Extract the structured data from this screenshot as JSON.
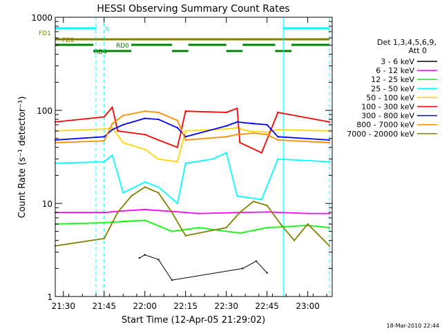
{
  "chart_data": {
    "type": "line",
    "title": "HESSI Observing Summary Count Rates",
    "xlabel": "Start Time (12-Apr-05 21:29:02)",
    "ylabel": "Count Rate (s⁻¹ detector⁻¹)",
    "y_scale": "log",
    "ylim": [
      1,
      1000
    ],
    "xlim": [
      "21:27",
      "23:09"
    ],
    "x_ticks": [
      "21:30",
      "21:45",
      "22:00",
      "22:15",
      "22:30",
      "22:45",
      "23:00"
    ],
    "y_ticks": [
      "1",
      "10",
      "100",
      "1000"
    ],
    "legend_header": [
      "Det 1,3,4,5,6,9,",
      "Att 0"
    ],
    "legend_position": "right",
    "series": [
      {
        "name": "3 - 6 keV",
        "color": "#000000",
        "points": [
          [
            "21:58",
            2.6
          ],
          [
            "22:00",
            2.8
          ],
          [
            "22:05",
            2.5
          ],
          [
            "22:10",
            1.5
          ],
          [
            "22:36",
            2.0
          ],
          [
            "22:41",
            2.4
          ],
          [
            "22:45",
            1.8
          ]
        ]
      },
      {
        "name": "6 - 12 keV",
        "color": "#ff00ff",
        "points": [
          [
            "21:27",
            8.0
          ],
          [
            "21:45",
            8.0
          ],
          [
            "21:52",
            8.3
          ],
          [
            "22:00",
            8.6
          ],
          [
            "22:10",
            8.2
          ],
          [
            "22:20",
            7.8
          ],
          [
            "22:35",
            8.0
          ],
          [
            "22:45",
            8.1
          ],
          [
            "23:00",
            7.8
          ],
          [
            "23:08",
            7.8
          ]
        ]
      },
      {
        "name": "12 - 25 keV",
        "color": "#00ff00",
        "points": [
          [
            "21:27",
            6.0
          ],
          [
            "21:45",
            6.2
          ],
          [
            "21:52",
            6.4
          ],
          [
            "22:00",
            6.6
          ],
          [
            "22:10",
            5.0
          ],
          [
            "22:20",
            5.5
          ],
          [
            "22:35",
            4.8
          ],
          [
            "22:45",
            5.5
          ],
          [
            "23:00",
            5.8
          ],
          [
            "23:08",
            5.5
          ]
        ]
      },
      {
        "name": "25 - 50 keV",
        "color": "#00ffff",
        "points": [
          [
            "21:27",
            27
          ],
          [
            "21:45",
            28
          ],
          [
            "21:48",
            33
          ],
          [
            "21:52",
            13
          ],
          [
            "22:00",
            17
          ],
          [
            "22:05",
            15
          ],
          [
            "22:12",
            10
          ],
          [
            "22:15",
            27
          ],
          [
            "22:25",
            30
          ],
          [
            "22:30",
            35
          ],
          [
            "22:34",
            12
          ],
          [
            "22:43",
            11
          ],
          [
            "22:49",
            30
          ],
          [
            "23:08",
            28
          ]
        ]
      },
      {
        "name": "50 - 100 keV",
        "color": "#ffd700",
        "points": [
          [
            "21:27",
            60
          ],
          [
            "21:45",
            63
          ],
          [
            "21:48",
            65
          ],
          [
            "21:52",
            45
          ],
          [
            "22:00",
            38
          ],
          [
            "22:05",
            30
          ],
          [
            "22:12",
            28
          ],
          [
            "22:15",
            60
          ],
          [
            "22:30",
            63
          ],
          [
            "22:34",
            65
          ],
          [
            "22:38",
            60
          ],
          [
            "22:45",
            58
          ],
          [
            "22:49",
            62
          ],
          [
            "23:08",
            60
          ]
        ]
      },
      {
        "name": "100 - 300 keV",
        "color": "#ff0000",
        "points": [
          [
            "21:27",
            75
          ],
          [
            "21:45",
            85
          ],
          [
            "21:48",
            108
          ],
          [
            "21:50",
            60
          ],
          [
            "22:00",
            55
          ],
          [
            "22:05",
            48
          ],
          [
            "22:12",
            40
          ],
          [
            "22:15",
            98
          ],
          [
            "22:30",
            95
          ],
          [
            "22:34",
            105
          ],
          [
            "22:35",
            45
          ],
          [
            "22:43",
            35
          ],
          [
            "22:49",
            95
          ],
          [
            "23:08",
            75
          ]
        ]
      },
      {
        "name": "300 - 800 keV",
        "color": "#0000ff",
        "points": [
          [
            "21:27",
            48
          ],
          [
            "21:45",
            52
          ],
          [
            "21:48",
            62
          ],
          [
            "21:52",
            70
          ],
          [
            "22:00",
            82
          ],
          [
            "22:05",
            80
          ],
          [
            "22:12",
            65
          ],
          [
            "22:15",
            52
          ],
          [
            "22:30",
            68
          ],
          [
            "22:34",
            75
          ],
          [
            "22:40",
            72
          ],
          [
            "22:45",
            70
          ],
          [
            "22:49",
            52
          ],
          [
            "23:08",
            48
          ]
        ]
      },
      {
        "name": "800 - 7000 keV",
        "color": "#ff8c00",
        "points": [
          [
            "21:27",
            45
          ],
          [
            "21:45",
            47
          ],
          [
            "21:48",
            72
          ],
          [
            "21:52",
            88
          ],
          [
            "22:00",
            98
          ],
          [
            "22:05",
            95
          ],
          [
            "22:12",
            78
          ],
          [
            "22:15",
            48
          ],
          [
            "22:30",
            52
          ],
          [
            "22:34",
            55
          ],
          [
            "22:40",
            57
          ],
          [
            "22:45",
            55
          ],
          [
            "22:49",
            48
          ],
          [
            "23:08",
            45
          ]
        ]
      },
      {
        "name": "7000 - 20000 keV",
        "color": "#808000",
        "points": [
          [
            "21:27",
            3.5
          ],
          [
            "21:45",
            4.2
          ],
          [
            "21:50",
            8.0
          ],
          [
            "21:55",
            12.0
          ],
          [
            "22:00",
            15.0
          ],
          [
            "22:05",
            13.0
          ],
          [
            "22:10",
            8.0
          ],
          [
            "22:15",
            4.5
          ],
          [
            "22:30",
            5.5
          ],
          [
            "22:35",
            8.0
          ],
          [
            "22:40",
            10.5
          ],
          [
            "22:45",
            9.5
          ],
          [
            "22:50",
            6.0
          ],
          [
            "22:55",
            4.0
          ],
          [
            "23:00",
            6.0
          ],
          [
            "23:08",
            3.5
          ]
        ]
      }
    ],
    "flags": [
      {
        "name": "N",
        "color": "#00ffff",
        "segments": [
          [
            "21:27",
            "21:42"
          ],
          [
            "22:51",
            "23:08"
          ]
        ]
      },
      {
        "name": "FD1",
        "color": "#808000",
        "segments": [
          [
            "21:27",
            "23:08"
          ]
        ]
      },
      {
        "name": "FD2",
        "color": "#808000",
        "segments": [
          [
            "21:27",
            "23:08"
          ]
        ]
      },
      {
        "name": "RD0",
        "color": "#008000",
        "segments": [
          [
            "21:27",
            "21:41"
          ],
          [
            "21:55",
            "22:10"
          ],
          [
            "22:16",
            "22:30"
          ],
          [
            "22:36",
            "22:48"
          ],
          [
            "22:54",
            "23:08"
          ]
        ]
      },
      {
        "name": "RD4",
        "color": "#008000",
        "segments": [
          [
            "21:41",
            "21:55"
          ],
          [
            "22:10",
            "22:16"
          ],
          [
            "22:30",
            "22:36"
          ],
          [
            "22:48",
            "22:54"
          ]
        ]
      }
    ],
    "vlines": [
      {
        "time": "21:42",
        "style": "dashed",
        "color": "#00ffff"
      },
      {
        "time": "21:45",
        "style": "dashed",
        "color": "#00ffff"
      },
      {
        "time": "22:51",
        "style": "solid",
        "color": "#00ffff"
      },
      {
        "time": "23:08",
        "style": "dashed",
        "color": "#00ffff"
      }
    ],
    "timestamp": "18-Mar-2010 22:44"
  }
}
